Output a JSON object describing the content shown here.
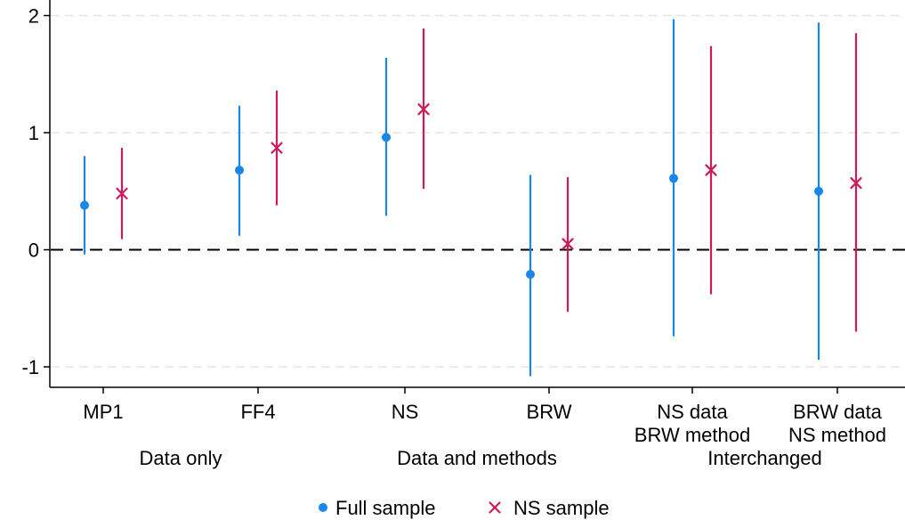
{
  "chart_data": {
    "type": "scatter",
    "title": "",
    "xlabel": "",
    "ylabel": "",
    "ylim": [
      -1.2,
      2.1
    ],
    "yticks": [
      -1,
      0,
      1,
      2
    ],
    "ytick_labels": [
      "-1",
      "0",
      "1",
      "2"
    ],
    "grid": "horizontal dashed",
    "reference_line": 0,
    "legend_position": "bottom-center",
    "categories": [
      {
        "label_lines": [
          "MP1"
        ]
      },
      {
        "label_lines": [
          "FF4"
        ]
      },
      {
        "label_lines": [
          "NS"
        ]
      },
      {
        "label_lines": [
          "BRW"
        ]
      },
      {
        "label_lines": [
          "NS data",
          "BRW method"
        ]
      },
      {
        "label_lines": [
          "BRW data",
          "NS method"
        ]
      }
    ],
    "groups": [
      {
        "label": "Data only",
        "categories": [
          0,
          1
        ]
      },
      {
        "label": "Data and methods",
        "categories": [
          2,
          3
        ]
      },
      {
        "label": "Interchanged",
        "categories": [
          4,
          5
        ]
      }
    ],
    "series": [
      {
        "name": "Full sample",
        "marker": "circle",
        "color": "#1a86e8",
        "points": [
          {
            "y": 0.38,
            "lo": -0.04,
            "hi": 0.8
          },
          {
            "y": 0.68,
            "lo": 0.12,
            "hi": 1.23
          },
          {
            "y": 0.96,
            "lo": 0.29,
            "hi": 1.64
          },
          {
            "y": -0.21,
            "lo": -1.08,
            "hi": 0.64
          },
          {
            "y": 0.61,
            "lo": -0.74,
            "hi": 1.97
          },
          {
            "y": 0.5,
            "lo": -0.94,
            "hi": 1.94
          }
        ]
      },
      {
        "name": "NS sample",
        "marker": "x",
        "color": "#cf1a5a",
        "points": [
          {
            "y": 0.48,
            "lo": 0.09,
            "hi": 0.87
          },
          {
            "y": 0.87,
            "lo": 0.38,
            "hi": 1.36
          },
          {
            "y": 1.2,
            "lo": 0.52,
            "hi": 1.89
          },
          {
            "y": 0.05,
            "lo": -0.53,
            "hi": 0.62
          },
          {
            "y": 0.68,
            "lo": -0.38,
            "hi": 1.74
          },
          {
            "y": 0.57,
            "lo": -0.7,
            "hi": 1.85
          }
        ]
      }
    ]
  }
}
